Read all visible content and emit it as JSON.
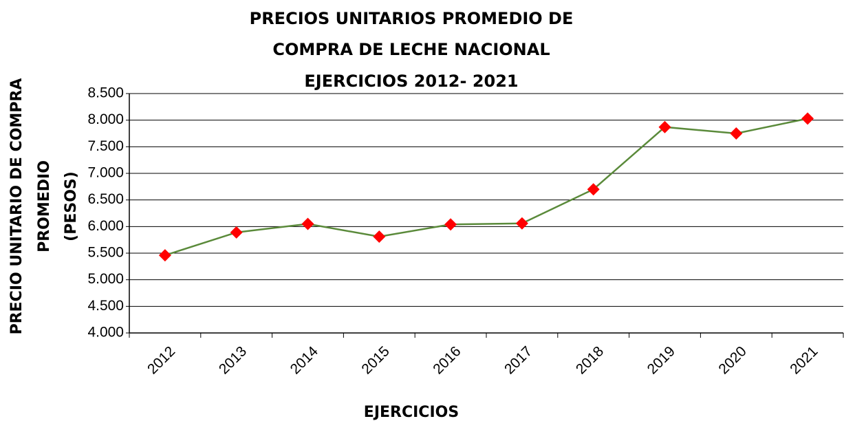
{
  "chart_data": {
    "type": "line",
    "title": [
      "PRECIOS UNITARIOS PROMEDIO DE",
      "COMPRA DE LECHE NACIONAL",
      "EJERCICIOS 2012- 2021"
    ],
    "x_label": "EJERCICIOS",
    "y_label": [
      "PRECIO UNITARIO DE COMPRA",
      "PROMEDIO",
      "(PESOS)"
    ],
    "categories": [
      "2012",
      "2013",
      "2014",
      "2015",
      "2016",
      "2017",
      "2018",
      "2019",
      "2020",
      "2021"
    ],
    "series": [
      {
        "color": "#5a8a3a",
        "marker_color": "#ff0000",
        "values": [
          5460,
          5890,
          6050,
          5810,
          6040,
          6060,
          6700,
          7870,
          7750,
          8030
        ]
      }
    ],
    "ylim": [
      4000,
      8500
    ],
    "yticks": [
      {
        "value": 4000,
        "label": "4.000"
      },
      {
        "value": 4500,
        "label": "4.500"
      },
      {
        "value": 5000,
        "label": "5.000"
      },
      {
        "value": 5500,
        "label": "5.500"
      },
      {
        "value": 6000,
        "label": "6.000"
      },
      {
        "value": 6500,
        "label": "6.500"
      },
      {
        "value": 7000,
        "label": "7.000"
      },
      {
        "value": 7500,
        "label": "7.500"
      },
      {
        "value": 8000,
        "label": "8.000"
      },
      {
        "value": 8500,
        "label": "8.500"
      }
    ],
    "grid": true
  }
}
